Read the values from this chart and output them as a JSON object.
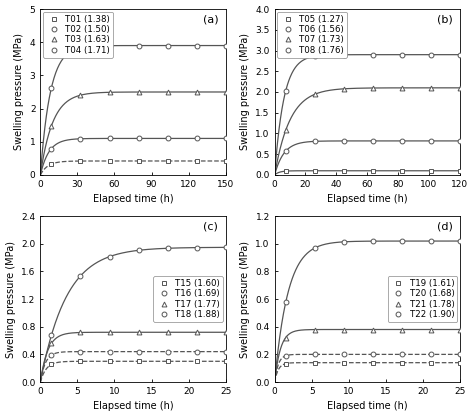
{
  "panels": [
    {
      "label": "(a)",
      "xlim": [
        0,
        150
      ],
      "ylim": [
        0,
        5.0
      ],
      "xticks": [
        0,
        30,
        60,
        90,
        120,
        150
      ],
      "yticks": [
        0,
        1,
        2,
        3,
        4,
        5
      ],
      "legend_loc": "upper left",
      "legend_bbox": null,
      "series": [
        {
          "name": "T01 (1.38)",
          "marker": "s",
          "final": 0.42,
          "tau": 6,
          "style": "--"
        },
        {
          "name": "T02 (1.50)",
          "marker": "o",
          "final": 1.1,
          "tau": 7,
          "style": "-"
        },
        {
          "name": "T03 (1.63)",
          "marker": "^",
          "final": 2.5,
          "tau": 10,
          "style": "-"
        },
        {
          "name": "T04 (1.71)",
          "marker": "o",
          "final": 3.9,
          "tau": 8,
          "style": "-"
        }
      ]
    },
    {
      "label": "(b)",
      "xlim": [
        0,
        120
      ],
      "ylim": [
        0,
        4.0
      ],
      "xticks": [
        0,
        20,
        40,
        60,
        80,
        100,
        120
      ],
      "yticks": [
        0,
        0.5,
        1.0,
        1.5,
        2.0,
        2.5,
        3.0,
        3.5,
        4.0
      ],
      "legend_loc": "upper left",
      "legend_bbox": null,
      "series": [
        {
          "name": "T05 (1.27)",
          "marker": "s",
          "final": 0.1,
          "tau": 3,
          "style": "-"
        },
        {
          "name": "T06 (1.56)",
          "marker": "o",
          "final": 0.82,
          "tau": 6,
          "style": "-"
        },
        {
          "name": "T07 (1.73)",
          "marker": "^",
          "final": 2.1,
          "tau": 10,
          "style": "-"
        },
        {
          "name": "T08 (1.76)",
          "marker": "o",
          "final": 2.9,
          "tau": 6,
          "style": "-"
        }
      ]
    },
    {
      "label": "(c)",
      "xlim": [
        0,
        25
      ],
      "ylim": [
        0,
        2.4
      ],
      "xticks": [
        0,
        5,
        10,
        15,
        20,
        25
      ],
      "yticks": [
        0,
        0.4,
        0.8,
        1.2,
        1.6,
        2.0,
        2.4
      ],
      "legend_loc": "center right",
      "legend_bbox": null,
      "series": [
        {
          "name": "T15 (1.60)",
          "marker": "s",
          "final": 0.3,
          "tau": 0.8,
          "style": "--"
        },
        {
          "name": "T16 (1.69)",
          "marker": "o",
          "final": 0.44,
          "tau": 0.7,
          "style": "--"
        },
        {
          "name": "T17 (1.77)",
          "marker": "^",
          "final": 0.72,
          "tau": 1.0,
          "style": "-"
        },
        {
          "name": "T18 (1.88)",
          "marker": "o",
          "final": 1.95,
          "tau": 3.5,
          "style": "-"
        }
      ]
    },
    {
      "label": "(d)",
      "xlim": [
        0,
        25
      ],
      "ylim": [
        0,
        1.2
      ],
      "xticks": [
        0,
        5,
        10,
        15,
        20,
        25
      ],
      "yticks": [
        0,
        0.2,
        0.4,
        0.6,
        0.8,
        1.0,
        1.2
      ],
      "legend_loc": "center right",
      "legend_bbox": null,
      "series": [
        {
          "name": "T19 (1.61)",
          "marker": "s",
          "final": 0.14,
          "tau": 0.5,
          "style": "--"
        },
        {
          "name": "T20 (1.68)",
          "marker": "o",
          "final": 0.2,
          "tau": 0.5,
          "style": "--"
        },
        {
          "name": "T21 (1.78)",
          "marker": "^",
          "final": 0.38,
          "tau": 0.8,
          "style": "-"
        },
        {
          "name": "T22 (1.90)",
          "marker": "o",
          "final": 1.02,
          "tau": 1.8,
          "style": "-"
        }
      ]
    }
  ],
  "xlabel": "Elapsed time (h)",
  "ylabel": "Swelling pressure (MPa)",
  "color": "#555555",
  "linewidth": 0.9,
  "markersize": 3.5,
  "fontsize": 7,
  "legend_fontsize": 6.2,
  "tick_fontsize": 6.5
}
